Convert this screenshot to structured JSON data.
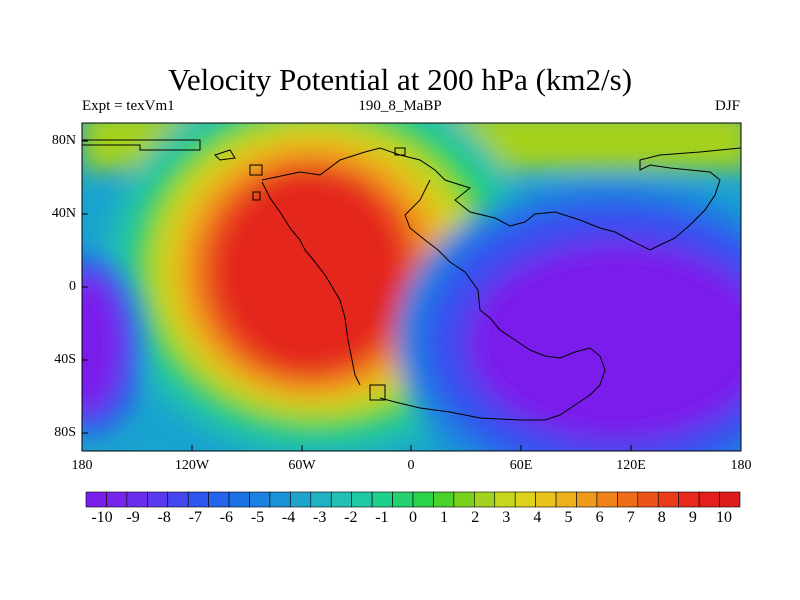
{
  "title": "Velocity Potential at 200 hPa (km2/s)",
  "left_string": "Expt = texVm1",
  "center_string": "190_8_MaBP",
  "right_string": "DJF",
  "lat_labels": [
    "80N",
    "40N",
    "0",
    "40S",
    "80S"
  ],
  "lon_labels": [
    "180",
    "120W",
    "60W",
    "0",
    "60E",
    "120E",
    "180"
  ],
  "colorbar": {
    "labels": [
      "-10",
      "-9",
      "-8",
      "-7",
      "-6",
      "-5",
      "-4",
      "-3",
      "-2",
      "-1",
      "0",
      "1",
      "2",
      "3",
      "4",
      "5",
      "6",
      "7",
      "8",
      "9",
      "10"
    ],
    "colors": [
      "#7a1eeb",
      "#7824ec",
      "#6c2eed",
      "#5a3aee",
      "#4546ef",
      "#2f56ee",
      "#2663eb",
      "#1d72e6",
      "#1a82df",
      "#1a92d6",
      "#1da3cc",
      "#20b2c2",
      "#22c0b4",
      "#1ec9a3",
      "#1fcf8c",
      "#23d26d",
      "#2ad34a",
      "#4ad22a",
      "#78d21d",
      "#a2d31c",
      "#c8d61c",
      "#ddd21b",
      "#e8c31b",
      "#eeb01b",
      "#ef9a1a",
      "#ef831a",
      "#ee6b1a",
      "#ec531b",
      "#ea3c1b",
      "#e8281c",
      "#e41d1d",
      "#dc1c1c"
    ]
  },
  "field": {
    "description_units": "km2/s",
    "min": -10,
    "max": 10
  }
}
